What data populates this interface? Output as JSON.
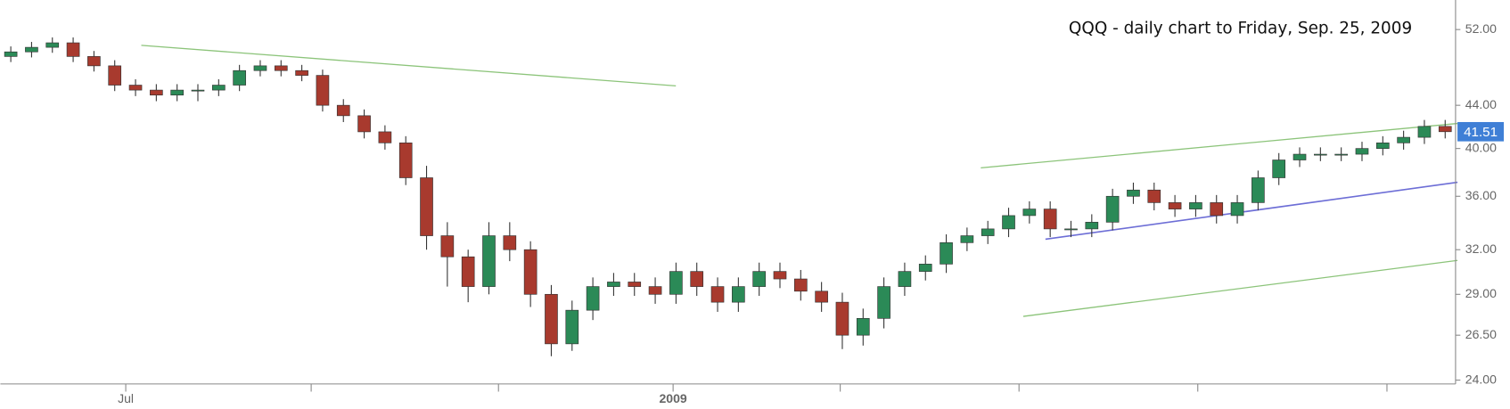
{
  "chart_data": {
    "type": "candlestick",
    "title": "QQQ - daily chart to Friday, Sep. 25, 2009",
    "categories": [
      null,
      null,
      null,
      null,
      null,
      null,
      null,
      null,
      null,
      null,
      null,
      null,
      null,
      null,
      null,
      null,
      null,
      null,
      null,
      null,
      null,
      null,
      null,
      null,
      null,
      null,
      null,
      null,
      null,
      null,
      null,
      null,
      null,
      null,
      null,
      null,
      null,
      null,
      null,
      null,
      null,
      null,
      null,
      null,
      null,
      null,
      null,
      null,
      null,
      null,
      null,
      null,
      null,
      null,
      null,
      null,
      null,
      null,
      null,
      null,
      null,
      null,
      null,
      null,
      null,
      null,
      null,
      null,
      null,
      null
    ],
    "open": [
      49,
      49.5,
      50,
      50.5,
      49,
      48,
      46,
      45.5,
      45,
      45.5,
      45.5,
      46,
      47.5,
      48,
      47.5,
      47,
      44,
      43,
      41.5,
      40.5,
      37.5,
      33,
      31.5,
      29.5,
      33,
      32,
      29,
      26,
      28,
      29.5,
      29.8,
      29.5,
      29,
      30.5,
      29.5,
      28.5,
      29.5,
      30.5,
      30,
      29.2,
      28.5,
      26.5,
      27.5,
      29.5,
      30.5,
      31,
      32.5,
      33,
      33.5,
      34.5,
      35,
      33.5,
      33.5,
      34,
      36,
      36.5,
      35.5,
      35,
      35.5,
      34.5,
      35.5,
      37.5,
      39,
      39.5,
      39.5,
      39.5,
      40,
      40.5,
      41,
      42
    ],
    "high": [
      50.1,
      50.6,
      51.1,
      51.1,
      49.6,
      48.6,
      46.6,
      46.1,
      46.1,
      46.1,
      46.6,
      48.1,
      48.6,
      48.6,
      48.1,
      47.6,
      44.6,
      43.6,
      42.1,
      41.1,
      38.5,
      34,
      32,
      34,
      34,
      32.6,
      29.6,
      28.6,
      30.1,
      30.4,
      30.4,
      30.1,
      31.1,
      31.1,
      30.1,
      30.1,
      31.1,
      31.1,
      30.6,
      29.8,
      29.1,
      28.1,
      30.1,
      31.1,
      31.6,
      33.1,
      33.6,
      34.1,
      35.1,
      35.6,
      35.6,
      34.1,
      34.6,
      36.6,
      37.1,
      37.1,
      36.1,
      36.1,
      36.1,
      36.1,
      38.1,
      39.6,
      40.1,
      40.1,
      40.1,
      40.6,
      41.1,
      41.6,
      42.6,
      42.6
    ],
    "low": [
      48.4,
      48.9,
      49.4,
      48.4,
      47.4,
      45.4,
      44.9,
      44.4,
      44.4,
      44.4,
      44.9,
      45.4,
      46.9,
      46.9,
      46.4,
      43.4,
      42.4,
      40.9,
      39.9,
      36.9,
      32,
      29.5,
      28.5,
      29,
      31.2,
      28.2,
      25.3,
      25.6,
      27.4,
      28.9,
      28.9,
      28.4,
      28.4,
      28.9,
      27.9,
      27.9,
      28.9,
      29.4,
      28.6,
      27.9,
      25.7,
      25.9,
      26.9,
      28.9,
      29.9,
      30.4,
      31.9,
      32.4,
      32.9,
      33.9,
      32.9,
      32.9,
      32.9,
      33.4,
      35.4,
      34.9,
      34.4,
      34.4,
      33.9,
      33.9,
      34.9,
      36.9,
      38.4,
      38.9,
      38.9,
      38.9,
      39.4,
      39.9,
      40.4,
      40.9
    ],
    "close": [
      49.5,
      50,
      50.5,
      49,
      48,
      46,
      45.5,
      45,
      45.5,
      45.5,
      46,
      47.5,
      48,
      47.5,
      47,
      44,
      43,
      41.5,
      40.5,
      37.5,
      33,
      31.5,
      29.5,
      33,
      32,
      29,
      26,
      28,
      29.5,
      29.8,
      29.5,
      29,
      30.5,
      29.5,
      28.5,
      29.5,
      30.5,
      30,
      29.2,
      28.5,
      26.5,
      27.5,
      29.5,
      30.5,
      31,
      32.5,
      33,
      33.5,
      34.5,
      35,
      33.5,
      33.5,
      34,
      36,
      36.5,
      35.5,
      35,
      35.5,
      34.5,
      35.5,
      37.5,
      39,
      39.5,
      39.5,
      39.5,
      40,
      40.5,
      41,
      42,
      41.51
    ],
    "up_color": "#2b8a57",
    "down_color": "#a83a2e",
    "last_color": "#3f7fd6",
    "log_scale": true,
    "ylim": [
      23.8,
      55.5
    ],
    "yticks": [
      {
        "value": 24,
        "label": "24.00"
      },
      {
        "value": 26.5,
        "label": "26.50"
      },
      {
        "value": 29,
        "label": "29.00"
      },
      {
        "value": 32,
        "label": "32.00"
      },
      {
        "value": 36,
        "label": "36.00"
      },
      {
        "value": 40,
        "label": "40.00"
      },
      {
        "value": 44,
        "label": "44.00"
      },
      {
        "value": 52,
        "label": "52.00"
      }
    ],
    "xticks": [
      {
        "value": 6.03,
        "label": "Jul"
      },
      {
        "value": 14.95,
        "label": null
      },
      {
        "value": 23.96,
        "label": null
      },
      {
        "value": 32.36,
        "label": "2009"
      },
      {
        "value": 40.4,
        "label": null
      },
      {
        "value": 49,
        "label": null
      },
      {
        "value": 57.6,
        "label": null
      },
      {
        "value": 66.7,
        "label": null
      }
    ]
  }
}
